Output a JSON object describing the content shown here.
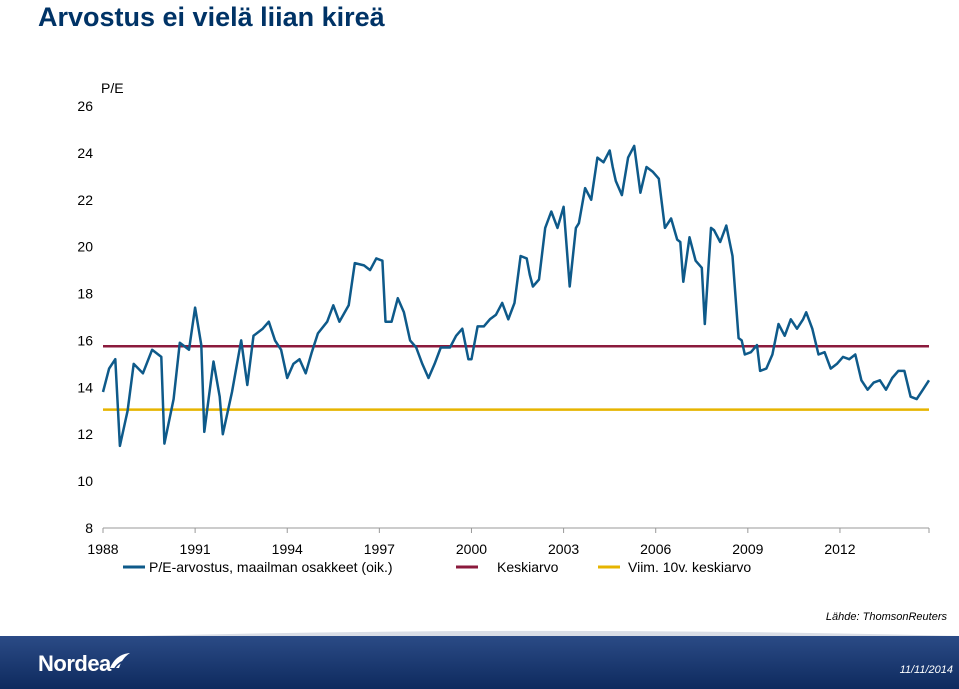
{
  "title": "Arvostus ei vielä liian kireä",
  "source": "Lähde: ThomsonReuters",
  "footer": {
    "logo": "Nordea",
    "date": "11/11/2014"
  },
  "colors": {
    "series": "#0e5a8a",
    "mean": "#8b1a3c",
    "mean10": "#e6b400",
    "title": "#003366",
    "footer": "#1a3a75"
  },
  "chart_data": {
    "type": "line",
    "ylabel": "P/E",
    "ylim": [
      8,
      26
    ],
    "yticks": [
      8,
      10,
      12,
      14,
      16,
      18,
      20,
      22,
      24,
      26
    ],
    "xlim": [
      1988,
      2014.9
    ],
    "xticks": [
      1988,
      1991,
      1994,
      1997,
      2000,
      2003,
      2006,
      2009,
      2012
    ],
    "legend_position": "bottom",
    "legend": [
      "P/E-arvostus, maailman osakkeet (oik.)",
      "Keskiarvo",
      "Viim. 10v. keskiarvo"
    ],
    "series": [
      {
        "name": "P/E-arvostus, maailman osakkeet (oik.)",
        "points": [
          [
            1988.0,
            13.8
          ],
          [
            1988.2,
            14.8
          ],
          [
            1988.4,
            15.2
          ],
          [
            1988.55,
            11.5
          ],
          [
            1988.8,
            13.0
          ],
          [
            1989.0,
            15.0
          ],
          [
            1989.3,
            14.6
          ],
          [
            1989.6,
            15.6
          ],
          [
            1989.9,
            15.3
          ],
          [
            1990.0,
            11.6
          ],
          [
            1990.3,
            13.5
          ],
          [
            1990.5,
            15.9
          ],
          [
            1990.8,
            15.6
          ],
          [
            1991.0,
            17.4
          ],
          [
            1991.2,
            15.8
          ],
          [
            1991.3,
            12.1
          ],
          [
            1991.6,
            15.1
          ],
          [
            1991.8,
            13.6
          ],
          [
            1991.9,
            12.0
          ],
          [
            1992.2,
            13.8
          ],
          [
            1992.5,
            16.0
          ],
          [
            1992.7,
            14.1
          ],
          [
            1992.9,
            16.2
          ],
          [
            1993.2,
            16.5
          ],
          [
            1993.4,
            16.8
          ],
          [
            1993.6,
            16.0
          ],
          [
            1993.8,
            15.6
          ],
          [
            1994.0,
            14.4
          ],
          [
            1994.2,
            15.0
          ],
          [
            1994.4,
            15.2
          ],
          [
            1994.6,
            14.6
          ],
          [
            1994.8,
            15.5
          ],
          [
            1995.0,
            16.3
          ],
          [
            1995.3,
            16.8
          ],
          [
            1995.5,
            17.5
          ],
          [
            1995.7,
            16.8
          ],
          [
            1996.0,
            17.5
          ],
          [
            1996.2,
            19.3
          ],
          [
            1996.5,
            19.2
          ],
          [
            1996.7,
            19.0
          ],
          [
            1996.9,
            19.5
          ],
          [
            1997.1,
            19.4
          ],
          [
            1997.2,
            16.8
          ],
          [
            1997.4,
            16.8
          ],
          [
            1997.6,
            17.8
          ],
          [
            1997.8,
            17.2
          ],
          [
            1998.0,
            16.0
          ],
          [
            1998.2,
            15.7
          ],
          [
            1998.4,
            15.0
          ],
          [
            1998.6,
            14.4
          ],
          [
            1998.8,
            15.0
          ],
          [
            1999.0,
            15.7
          ],
          [
            1999.3,
            15.7
          ],
          [
            1999.5,
            16.2
          ],
          [
            1999.7,
            16.5
          ],
          [
            1999.9,
            15.2
          ],
          [
            2000.0,
            15.2
          ],
          [
            2000.2,
            16.6
          ],
          [
            2000.4,
            16.6
          ],
          [
            2000.6,
            16.9
          ],
          [
            2000.8,
            17.1
          ],
          [
            2001.0,
            17.6
          ],
          [
            2001.2,
            16.9
          ],
          [
            2001.4,
            17.6
          ],
          [
            2001.6,
            19.6
          ],
          [
            2001.8,
            19.5
          ],
          [
            2001.9,
            18.8
          ],
          [
            2002.0,
            18.3
          ],
          [
            2002.2,
            18.6
          ],
          [
            2002.4,
            20.8
          ],
          [
            2002.6,
            21.5
          ],
          [
            2002.8,
            20.8
          ],
          [
            2003.0,
            21.7
          ],
          [
            2003.2,
            18.3
          ],
          [
            2003.4,
            20.8
          ],
          [
            2003.5,
            21.0
          ],
          [
            2003.7,
            22.5
          ],
          [
            2003.9,
            22.0
          ],
          [
            2004.1,
            23.8
          ],
          [
            2004.3,
            23.6
          ],
          [
            2004.5,
            24.1
          ],
          [
            2004.6,
            23.4
          ],
          [
            2004.7,
            22.8
          ],
          [
            2004.9,
            22.2
          ],
          [
            2005.1,
            23.8
          ],
          [
            2005.3,
            24.3
          ],
          [
            2005.5,
            22.3
          ],
          [
            2005.7,
            23.4
          ],
          [
            2005.9,
            23.2
          ],
          [
            2006.1,
            22.9
          ],
          [
            2006.3,
            20.8
          ],
          [
            2006.5,
            21.2
          ],
          [
            2006.7,
            20.3
          ],
          [
            2006.8,
            20.2
          ],
          [
            2006.9,
            18.5
          ],
          [
            2007.1,
            20.4
          ],
          [
            2007.3,
            19.4
          ],
          [
            2007.5,
            19.1
          ],
          [
            2007.6,
            16.7
          ],
          [
            2007.8,
            20.8
          ],
          [
            2007.9,
            20.7
          ],
          [
            2008.1,
            20.2
          ],
          [
            2008.3,
            20.9
          ],
          [
            2008.5,
            19.6
          ],
          [
            2008.7,
            16.1
          ],
          [
            2008.8,
            16.0
          ],
          [
            2008.9,
            15.4
          ],
          [
            2009.1,
            15.5
          ],
          [
            2009.3,
            15.8
          ],
          [
            2009.4,
            14.7
          ],
          [
            2009.6,
            14.8
          ],
          [
            2009.8,
            15.4
          ],
          [
            2010.0,
            16.7
          ],
          [
            2010.2,
            16.2
          ],
          [
            2010.4,
            16.9
          ],
          [
            2010.6,
            16.5
          ],
          [
            2010.8,
            16.9
          ],
          [
            2010.9,
            17.2
          ],
          [
            2011.1,
            16.5
          ],
          [
            2011.3,
            15.4
          ],
          [
            2011.5,
            15.5
          ],
          [
            2011.7,
            14.8
          ],
          [
            2011.9,
            15.0
          ],
          [
            2012.1,
            15.3
          ],
          [
            2012.3,
            15.2
          ],
          [
            2012.5,
            15.4
          ],
          [
            2012.7,
            14.3
          ],
          [
            2012.9,
            13.9
          ],
          [
            2013.1,
            14.2
          ],
          [
            2013.3,
            14.3
          ],
          [
            2013.5,
            13.9
          ],
          [
            2013.7,
            14.4
          ],
          [
            2013.9,
            14.7
          ],
          [
            2014.1,
            14.7
          ],
          [
            2014.3,
            13.6
          ],
          [
            2014.5,
            13.5
          ],
          [
            2014.7,
            13.9
          ],
          [
            2014.9,
            14.3
          ]
        ]
      }
    ],
    "mean": 15.75,
    "mean10": 13.05
  }
}
